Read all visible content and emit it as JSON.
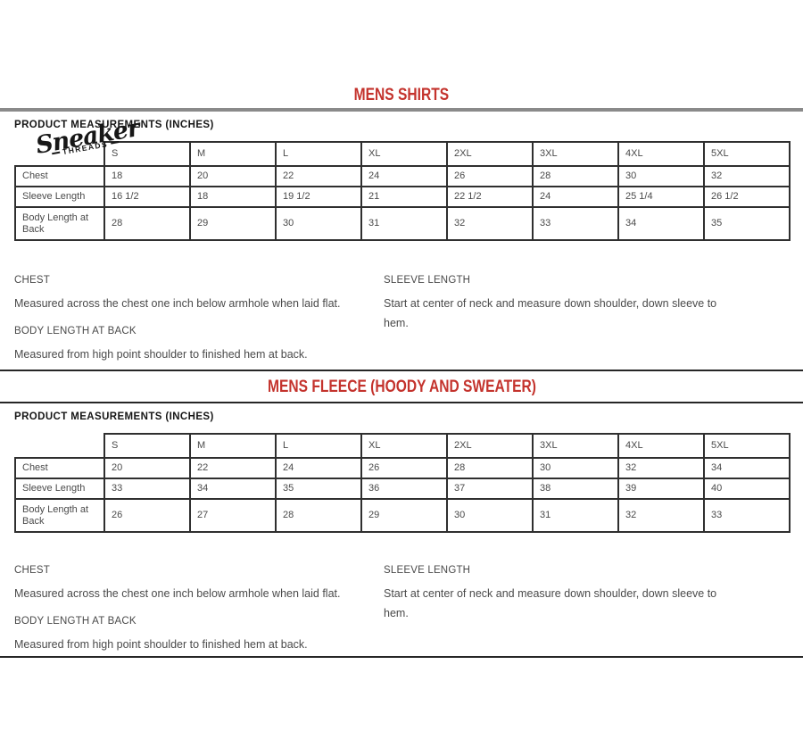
{
  "logo": {
    "name": "Sneaker",
    "subname": "THREADS"
  },
  "sections": [
    {
      "title": "MENS SHIRTS",
      "measurements_heading": "PRODUCT MEASUREMENTS (INCHES)",
      "table": {
        "sizes": [
          "S",
          "M",
          "L",
          "XL",
          "2XL",
          "3XL",
          "4XL",
          "5XL"
        ],
        "rows": [
          {
            "label": "Chest",
            "values": [
              "18",
              "20",
              "22",
              "24",
              "26",
              "28",
              "30",
              "32"
            ]
          },
          {
            "label": "Sleeve Length",
            "values": [
              "16 1/2",
              "18",
              "19 1/2",
              "21",
              "22 1/2",
              "24",
              "25 1/4",
              "26 1/2"
            ]
          },
          {
            "label": "Body Length at Back",
            "values": [
              "28",
              "29",
              "30",
              "31",
              "32",
              "33",
              "34",
              "35"
            ]
          }
        ]
      },
      "definitions": {
        "chest": {
          "term": "CHEST",
          "description": "Measured across the chest one inch below armhole when laid flat."
        },
        "sleeve": {
          "term": "SLEEVE LENGTH",
          "description": "Start at center of neck and measure down shoulder, down sleeve to hem."
        },
        "body": {
          "term": "BODY LENGTH AT BACK",
          "description": "Measured from high point shoulder to finished hem at back."
        }
      }
    },
    {
      "title": "MENS FLEECE (HOODY AND SWEATER)",
      "measurements_heading": "PRODUCT MEASUREMENTS (INCHES)",
      "table": {
        "sizes": [
          "S",
          "M",
          "L",
          "XL",
          "2XL",
          "3XL",
          "4XL",
          "5XL"
        ],
        "rows": [
          {
            "label": "Chest",
            "values": [
              "20",
              "22",
              "24",
              "26",
              "28",
              "30",
              "32",
              "34"
            ]
          },
          {
            "label": "Sleeve Length",
            "values": [
              "33",
              "34",
              "35",
              "36",
              "37",
              "38",
              "39",
              "40"
            ]
          },
          {
            "label": "Body Length at Back",
            "values": [
              "26",
              "27",
              "28",
              "29",
              "30",
              "31",
              "32",
              "33"
            ]
          }
        ]
      },
      "definitions": {
        "chest": {
          "term": "CHEST",
          "description": "Measured across the chest one inch below armhole when laid flat."
        },
        "sleeve": {
          "term": "SLEEVE LENGTH",
          "description": "Start at center of neck and measure down shoulder, down sleeve to hem."
        },
        "body": {
          "term": "BODY LENGTH AT BACK",
          "description": "Measured from high point shoulder to finished hem at back."
        }
      }
    }
  ],
  "colors": {
    "title_red": "#c4332d",
    "divider_gray": "#8a8a8a",
    "divider_black": "#262626",
    "table_border": "#2f2f2f",
    "body_text": "#4a4a4a"
  }
}
